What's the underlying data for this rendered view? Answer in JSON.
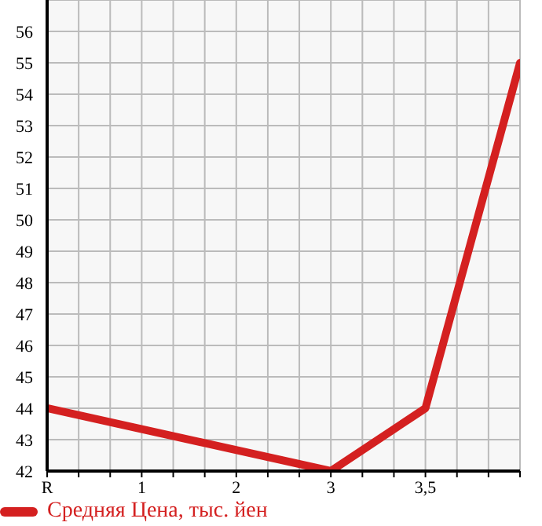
{
  "chart_data": {
    "type": "line",
    "categories": [
      "R",
      "1",
      "2",
      "3",
      "3,5",
      null
    ],
    "series": [
      {
        "name": "Средняя Цена, тыс. йен",
        "color": "#d42020",
        "values": [
          44,
          null,
          null,
          42,
          44,
          55
        ]
      }
    ],
    "ylim": [
      42,
      57
    ],
    "yticks": [
      42,
      43,
      44,
      45,
      46,
      47,
      48,
      49,
      50,
      51,
      52,
      53,
      54,
      55,
      56
    ],
    "grid": true,
    "legend": "bottom left",
    "marker": "none",
    "line_style": "solid"
  }
}
